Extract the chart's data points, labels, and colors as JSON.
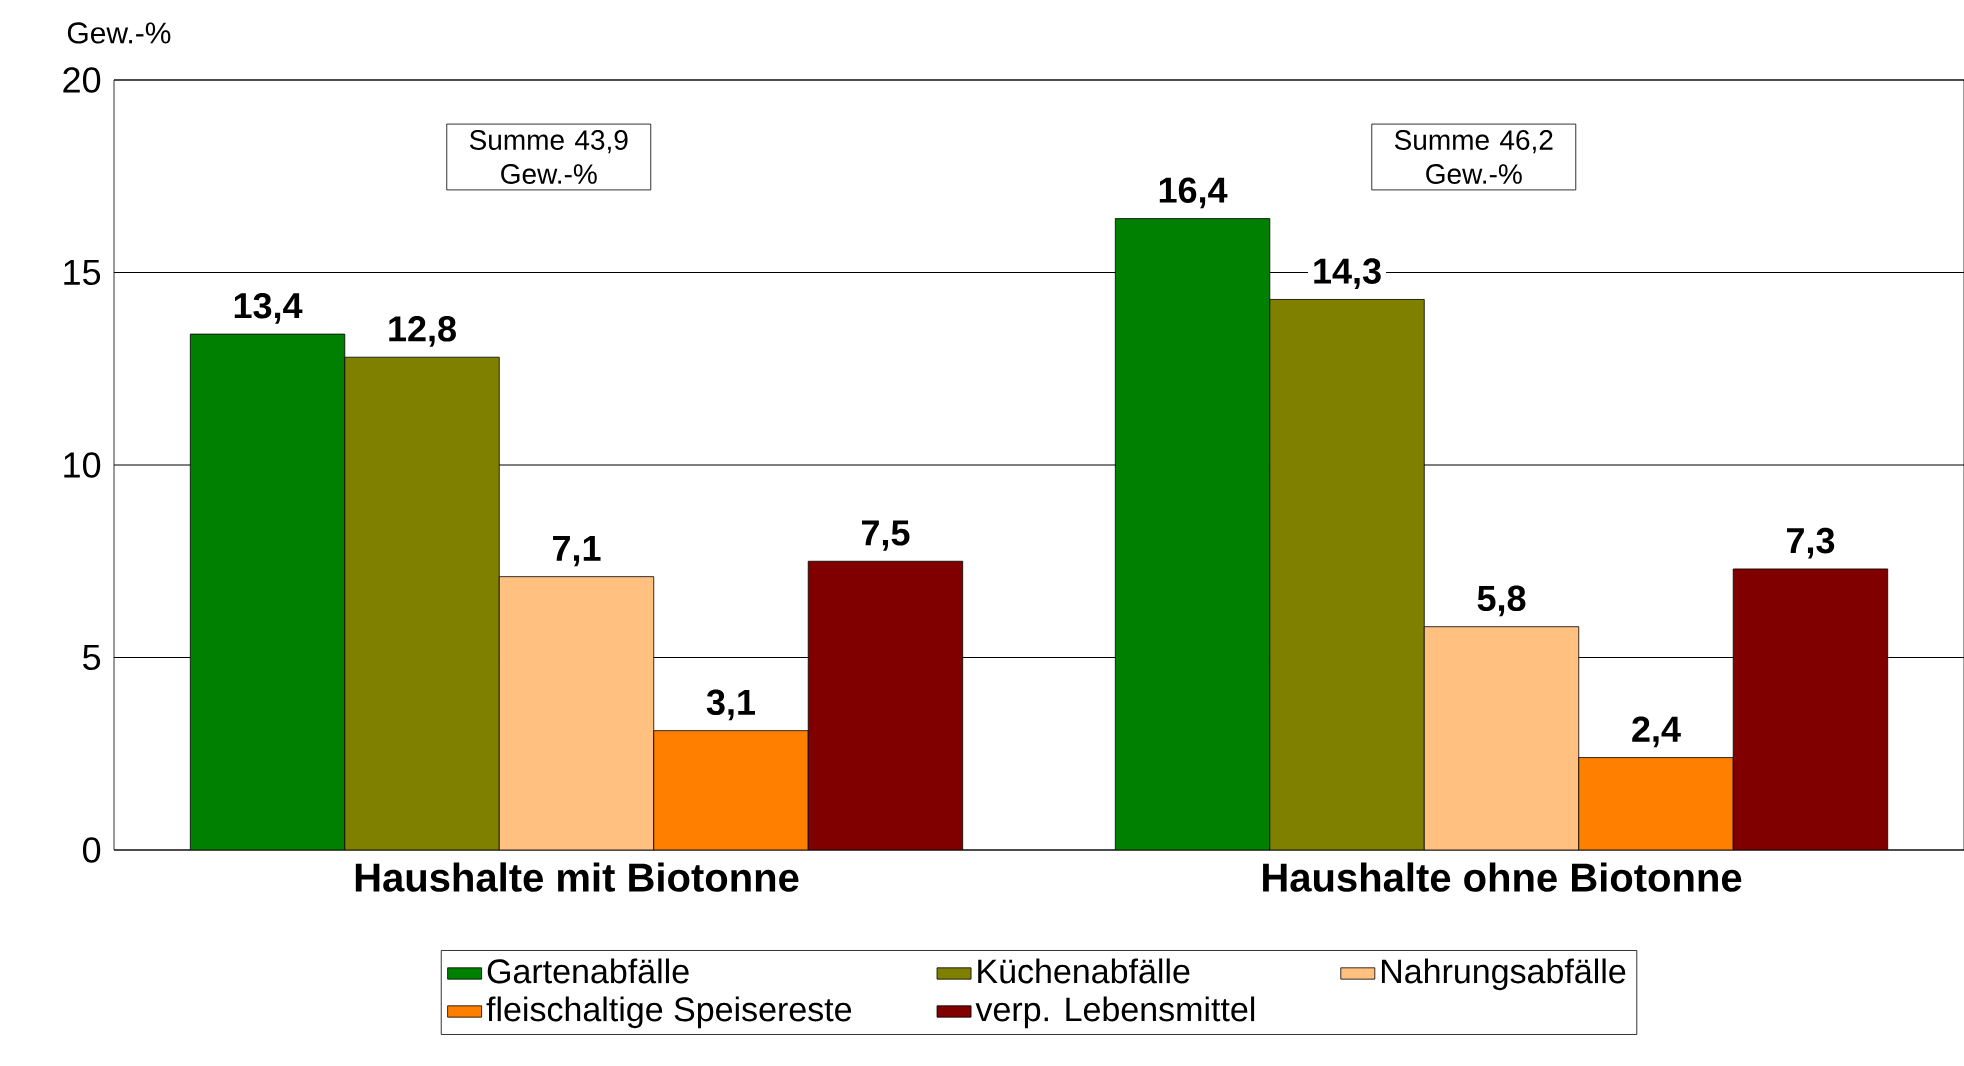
{
  "chart_data": {
    "type": "bar",
    "ylabel": "Gew.-%",
    "categories": [
      "Haushalte mit Biotonne",
      "Haushalte ohne Biotonne"
    ],
    "series": [
      {
        "name": "Gartenabfälle",
        "color": "#008000",
        "values": [
          13.4,
          16.4
        ],
        "value_labels": [
          "13,4",
          "16,4"
        ]
      },
      {
        "name": "Küchenabfälle",
        "color": "#808000",
        "values": [
          12.8,
          14.3
        ],
        "value_labels": [
          "12,8",
          "14,3"
        ]
      },
      {
        "name": "Nahrungsabfälle",
        "color": "#ffc080",
        "values": [
          7.1,
          5.8
        ],
        "value_labels": [
          "7,1",
          "5,8"
        ]
      },
      {
        "name": "fleischaltige Speisereste",
        "color": "#ff8000",
        "values": [
          3.1,
          2.4
        ],
        "value_labels": [
          "3,1",
          "2,4"
        ]
      },
      {
        "name": "verp. Lebensmittel",
        "color": "#800000",
        "values": [
          7.5,
          7.3
        ],
        "value_labels": [
          "7,5",
          "7,3"
        ]
      }
    ],
    "ylim": [
      0,
      20
    ],
    "yticks": [
      0,
      5,
      10,
      15,
      20
    ],
    "grid": "y",
    "legend": "bottom",
    "annotations": [
      "Summe 43,9 Gew.-%",
      "Summe 46,2 Gew.-%"
    ]
  }
}
